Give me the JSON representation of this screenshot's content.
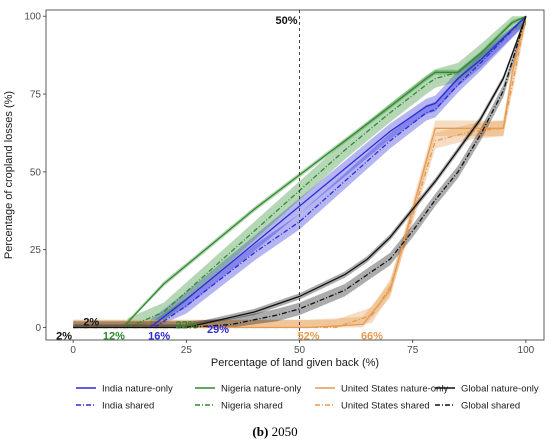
{
  "caption": {
    "label": "(b)",
    "text": "2050"
  },
  "chart_data": {
    "type": "line",
    "xlabel": "Percentage of land given back (%)",
    "ylabel": "Percentage of cropland losses (%)",
    "xlim": [
      -6,
      104
    ],
    "ylim": [
      -4,
      102
    ],
    "xticks": [
      "0",
      "25",
      "50",
      "75",
      "100"
    ],
    "yticks": [
      "0",
      "25",
      "50",
      "75",
      "100"
    ],
    "grid": false,
    "legend_position": "bottom",
    "reference_line": {
      "x": 50,
      "label": "50%"
    },
    "colors": {
      "India": "#2b2bd9",
      "Nigeria": "#2e8b2e",
      "United States": "#e69b50",
      "Global": "#111111"
    },
    "series": [
      {
        "name": "India nature-only",
        "country": "India",
        "style": "solid",
        "x": [
          17,
          25,
          40,
          50,
          60,
          70,
          78,
          80,
          85,
          90,
          100
        ],
        "y": [
          0,
          9,
          27,
          39,
          51,
          63,
          71,
          72,
          80,
          86,
          100
        ],
        "band": 2.5
      },
      {
        "name": "India shared",
        "country": "India",
        "style": "dash",
        "x": [
          18,
          25,
          40,
          50,
          60,
          70,
          78,
          80,
          85,
          90,
          100
        ],
        "y": [
          0,
          7,
          24,
          34,
          47,
          60,
          69,
          70,
          78,
          85,
          100
        ],
        "band": 2.5
      },
      {
        "name": "Nigeria nature-only",
        "country": "Nigeria",
        "style": "solid",
        "x": [
          11,
          20,
          30,
          40,
          50,
          60,
          70,
          78,
          80,
          85,
          90,
          97,
          100
        ],
        "y": [
          0,
          14,
          26,
          38,
          49,
          60,
          71,
          80,
          82,
          82,
          88,
          98,
          100
        ],
        "band": 0.8
      },
      {
        "name": "Nigeria shared",
        "country": "Nigeria",
        "style": "dash",
        "x": [
          12,
          20,
          30,
          40,
          50,
          60,
          70,
          78,
          80,
          85,
          90,
          97,
          100
        ],
        "y": [
          0,
          5,
          18,
          31,
          44,
          57,
          69,
          78,
          80,
          82,
          88,
          98,
          100
        ],
        "band": 3
      },
      {
        "name": "United States nature-only",
        "country": "United States",
        "style": "solid",
        "x": [
          0,
          52,
          64,
          70,
          75,
          80,
          84,
          88,
          92,
          95,
          97,
          100
        ],
        "y": [
          0,
          0,
          1,
          12,
          38,
          64,
          64,
          64,
          64,
          64,
          82,
          100
        ],
        "band": 2.5
      },
      {
        "name": "United States shared",
        "country": "United States",
        "style": "dash",
        "x": [
          0,
          58,
          66,
          70,
          75,
          80,
          88,
          95,
          98,
          100
        ],
        "y": [
          0,
          0,
          4,
          13,
          36,
          60,
          63,
          64,
          85,
          100
        ],
        "band": 2.5
      },
      {
        "name": "Global nature-only",
        "country": "Global",
        "style": "solid",
        "x": [
          0,
          25,
          40,
          50,
          60,
          65,
          70,
          75,
          80,
          85,
          90,
          95,
          100
        ],
        "y": [
          0,
          0,
          5,
          10,
          17,
          22,
          29,
          38,
          47,
          57,
          67,
          80,
          100
        ],
        "band": 1
      },
      {
        "name": "Global shared",
        "country": "Global",
        "style": "dash",
        "x": [
          0,
          25,
          35,
          45,
          50,
          60,
          65,
          70,
          75,
          80,
          85,
          90,
          95,
          100
        ],
        "y": [
          0,
          0,
          1,
          4,
          6,
          12,
          17,
          22,
          31,
          41,
          50,
          62,
          76,
          100
        ],
        "band": 2
      }
    ],
    "annotations": [
      {
        "text": "2%",
        "x": -2,
        "y": -2.5,
        "color": "#111111"
      },
      {
        "text": "2%",
        "x": 4,
        "y": 2,
        "color": "#111111"
      },
      {
        "text": "12%",
        "x": 9,
        "y": -2.5,
        "color": "#2e8b2e"
      },
      {
        "text": "16%",
        "x": 19,
        "y": -2.5,
        "color": "#2b2bd9"
      },
      {
        "text": "22%",
        "x": 25,
        "y": 1,
        "color": "#2e8b2e"
      },
      {
        "text": "29%",
        "x": 32,
        "y": -0.5,
        "color": "#2b2bd9"
      },
      {
        "text": "52%",
        "x": 52,
        "y": -2.5,
        "color": "#e69b50"
      },
      {
        "text": "66%",
        "x": 66,
        "y": -2.5,
        "color": "#e69b50"
      }
    ]
  }
}
